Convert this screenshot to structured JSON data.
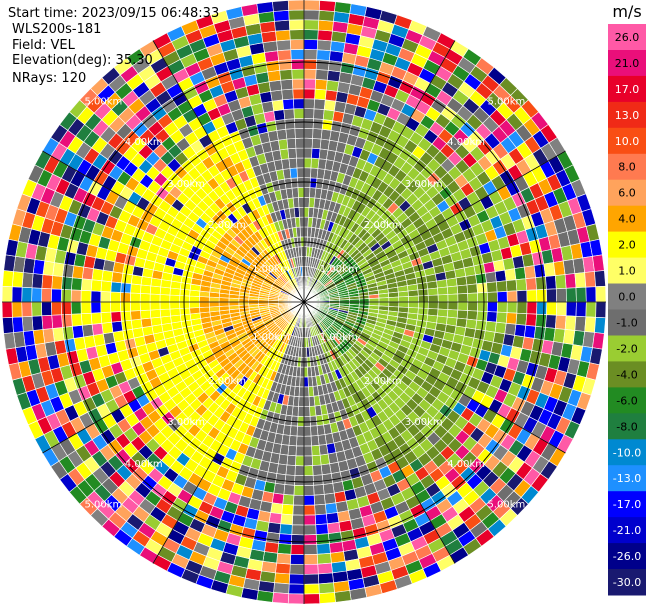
{
  "info": {
    "start_time": "Start time: 2023/09/15 06:48:33",
    "instrument": "WLS200s-181",
    "field": "Field: VEL",
    "elevation": "Elevation(deg): 35.30",
    "nrays": "NRays: 120"
  },
  "colorbar": {
    "unit": "m/s",
    "ticks": [
      "26.0",
      "21.0",
      "17.0",
      "13.0",
      "10.0",
      "8.0",
      "6.0",
      "4.0",
      "2.0",
      "1.0",
      "0.0",
      "-1.0",
      "-2.0",
      "-4.0",
      "-6.0",
      "-8.0",
      "-10.0",
      "-13.0",
      "-17.0",
      "-21.0",
      "-26.0",
      "-30.0"
    ],
    "colors": [
      "#ff59a6",
      "#ea0f7a",
      "#e8002a",
      "#f02a17",
      "#f94e14",
      "#ff7a50",
      "#ffa35c",
      "#ffa500",
      "#ffff00",
      "#ffff66",
      "#808080",
      "#6e6e6e",
      "#9acd32",
      "#6b8e23",
      "#228b22",
      "#1f7f3f",
      "#0089d1",
      "#1e90ff",
      "#0000ff",
      "#0000cd",
      "#00008b",
      "#191970"
    ]
  },
  "chart_data": {
    "type": "heatmap",
    "projection": "polar PPI",
    "field": "VEL",
    "unit": "m/s",
    "nrays": 120,
    "elevation_deg": 35.3,
    "range_rings_km": [
      "1.00km",
      "2.00km",
      "3.00km",
      "4.00km",
      "5.00km"
    ],
    "ring_label_texts": [
      "1.00km",
      "2.00km",
      "3.00km",
      "4.00km",
      "5.00km"
    ],
    "value_range": [
      -30.0,
      26.0
    ],
    "description_of_pattern": {
      "west_sector": "positive 2 to 6 m/s (yellow/orange)",
      "east_sector": "negative -1 to -4 m/s (green)",
      "north_south_sector": "near zero (grey)",
      "outer_ranges": "noise across full scale"
    }
  }
}
